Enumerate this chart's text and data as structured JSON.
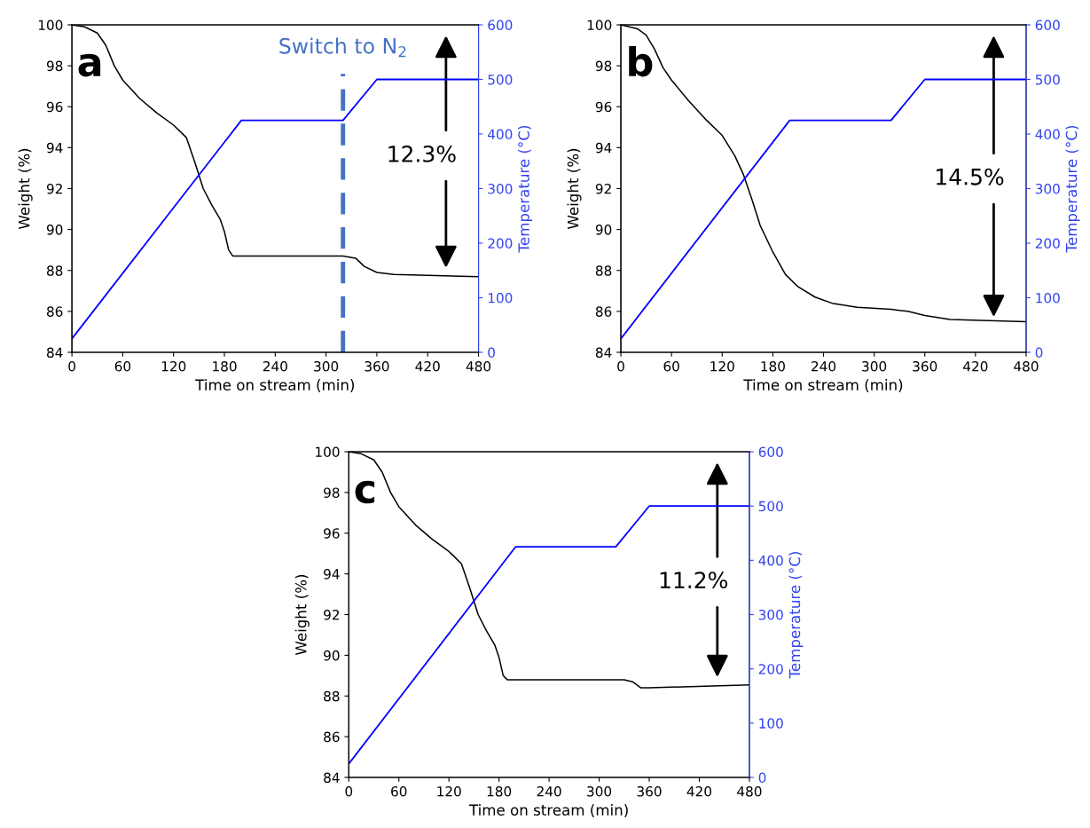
{
  "chart_data": [
    {
      "type": "line",
      "title": "a",
      "xlabel": "Time on stream (min)",
      "ylabel": "Weight (%)",
      "y2label": "Temperature (°C)",
      "xlim": [
        0,
        480
      ],
      "xticks": [
        0,
        60,
        120,
        180,
        240,
        300,
        360,
        420,
        480
      ],
      "ylim": [
        84,
        100
      ],
      "yticks": [
        84,
        86,
        88,
        90,
        92,
        94,
        96,
        98,
        100
      ],
      "y2lim": [
        0,
        600
      ],
      "y2ticks": [
        0,
        100,
        200,
        300,
        400,
        500,
        600
      ],
      "series": [
        {
          "color": "#000000",
          "x": [
            0,
            15,
            30,
            40,
            50,
            60,
            80,
            100,
            120,
            135,
            145,
            155,
            165,
            175,
            180,
            185,
            190,
            200,
            320,
            335,
            345,
            360,
            380,
            480
          ],
          "values": [
            100,
            99.9,
            99.6,
            99.0,
            98.0,
            97.3,
            96.4,
            95.7,
            95.1,
            94.5,
            93.3,
            92.0,
            91.2,
            90.5,
            89.9,
            89.0,
            88.7,
            88.7,
            88.7,
            88.6,
            88.2,
            87.9,
            87.8,
            87.7
          ]
        },
        {
          "color": "#0000ff",
          "axis": "y2",
          "x": [
            0,
            200,
            320,
            360,
            480
          ],
          "values": [
            25,
            425,
            425,
            500,
            500
          ]
        }
      ],
      "ref_lines": [
        {
          "axis": "x",
          "value": 320,
          "label": "Switch to N$_{2}$",
          "color": "#4472c4",
          "line_style": "dashed"
        }
      ],
      "annotations": [
        "12.3%"
      ]
    },
    {
      "type": "line",
      "title": "b",
      "xlabel": "Time on stream (min)",
      "ylabel": "Weight (%)",
      "y2label": "Temperature (°C)",
      "xlim": [
        0,
        480
      ],
      "xticks": [
        0,
        60,
        120,
        180,
        240,
        300,
        360,
        420,
        480
      ],
      "ylim": [
        84,
        100
      ],
      "yticks": [
        84,
        86,
        88,
        90,
        92,
        94,
        96,
        98,
        100
      ],
      "y2lim": [
        0,
        600
      ],
      "y2ticks": [
        0,
        100,
        200,
        300,
        400,
        500,
        600
      ],
      "series": [
        {
          "color": "#000000",
          "x": [
            0,
            20,
            30,
            40,
            50,
            60,
            80,
            100,
            120,
            135,
            145,
            155,
            165,
            180,
            195,
            210,
            230,
            250,
            280,
            320,
            340,
            360,
            390,
            480
          ],
          "values": [
            100,
            99.8,
            99.5,
            98.8,
            97.9,
            97.3,
            96.3,
            95.4,
            94.6,
            93.6,
            92.7,
            91.5,
            90.2,
            88.9,
            87.8,
            87.2,
            86.7,
            86.4,
            86.2,
            86.1,
            86.0,
            85.8,
            85.6,
            85.5
          ]
        },
        {
          "color": "#0000ff",
          "axis": "y2",
          "x": [
            0,
            200,
            320,
            360,
            480
          ],
          "values": [
            25,
            425,
            425,
            500,
            500
          ]
        }
      ],
      "annotations": [
        "14.5%"
      ]
    },
    {
      "type": "line",
      "title": "c",
      "xlabel": "Time on stream (min)",
      "ylabel": "Weight (%)",
      "y2label": "Temperature (°C)",
      "xlim": [
        0,
        480
      ],
      "xticks": [
        0,
        60,
        120,
        180,
        240,
        300,
        360,
        420,
        480
      ],
      "ylim": [
        84,
        100
      ],
      "yticks": [
        84,
        86,
        88,
        90,
        92,
        94,
        96,
        98,
        100
      ],
      "y2lim": [
        0,
        600
      ],
      "y2ticks": [
        0,
        100,
        200,
        300,
        400,
        500,
        600
      ],
      "series": [
        {
          "color": "#000000",
          "x": [
            0,
            15,
            30,
            40,
            50,
            60,
            80,
            100,
            120,
            135,
            145,
            155,
            165,
            175,
            180,
            185,
            190,
            200,
            330,
            340,
            350,
            360,
            400,
            480
          ],
          "values": [
            100,
            99.9,
            99.6,
            99.0,
            98.0,
            97.3,
            96.4,
            95.7,
            95.1,
            94.5,
            93.3,
            92.0,
            91.2,
            90.5,
            89.9,
            89.0,
            88.8,
            88.8,
            88.8,
            88.7,
            88.4,
            88.4,
            88.45,
            88.55
          ]
        },
        {
          "color": "#0000ff",
          "axis": "y2",
          "x": [
            0,
            200,
            320,
            360,
            480
          ],
          "values": [
            25,
            425,
            425,
            500,
            500
          ]
        }
      ],
      "annotations": [
        "11.2%"
      ]
    }
  ]
}
